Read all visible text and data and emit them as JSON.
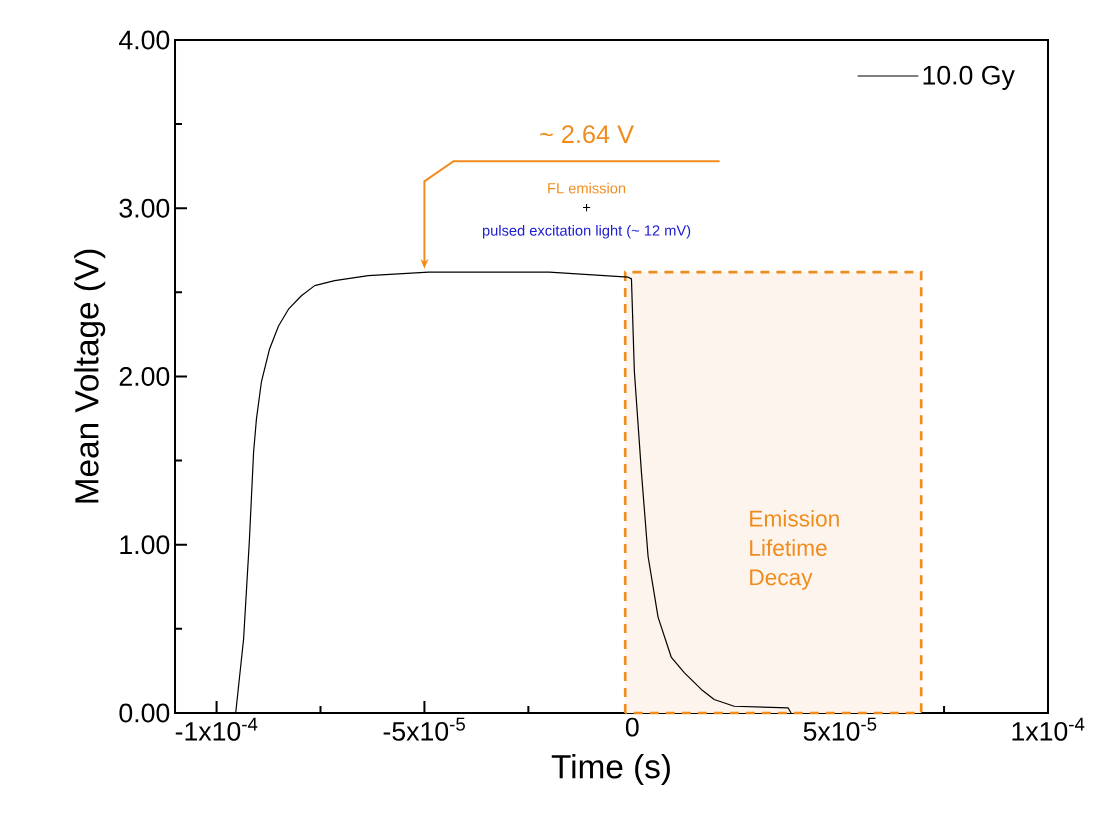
{
  "chart_data": {
    "type": "line",
    "xlabel": "Time (s)",
    "ylabel": "Mean Voltage (V)",
    "xlim": [
      -0.00011,
      0.0001
    ],
    "ylim": [
      0,
      4.0
    ],
    "xticks": [
      {
        "value": -0.0001,
        "label": "-1x10$^{-4}$"
      },
      {
        "value": -5e-05,
        "label": "-5x10$^{-5}$"
      },
      0,
      {
        "value": 5e-05,
        "label": "5x10$^{-5}$"
      },
      {
        "value": 0.0001,
        "label": "1x10$^{-4}$"
      }
    ],
    "yticks": [
      {
        "value": 0,
        "label": "0.00"
      },
      {
        "value": 1,
        "label": "1.00"
      },
      {
        "value": 2,
        "label": "2.00"
      },
      {
        "value": 3,
        "label": "3.00"
      },
      {
        "value": 4,
        "label": "4.00"
      }
    ],
    "legend": "top right",
    "series": [
      {
        "name": "10.0 Gy",
        "color": "#000000",
        "x": [
          -0.00011,
          -9.54e-05,
          -9.35e-05,
          -9.21e-05,
          -9.11e-05,
          -9.04e-05,
          -8.92e-05,
          -8.73e-05,
          -8.51e-05,
          -8.27e-05,
          -7.96e-05,
          -7.64e-05,
          -7.16e-05,
          -6.35e-05,
          -4.9e-05,
          -2e-05,
          -1e-06,
          -2e-07,
          5e-07,
          2.2e-06,
          3.8e-06,
          6.2e-06,
          9.4e-06,
          1.25e-05,
          1.66e-05,
          1.97e-05,
          2.45e-05,
          3.75e-05,
          3.82e-05
        ],
        "values": [
          0,
          0,
          0.44,
          1.03,
          1.55,
          1.75,
          1.97,
          2.16,
          2.3,
          2.4,
          2.48,
          2.54,
          2.57,
          2.6,
          2.62,
          2.62,
          2.59,
          2.58,
          2.03,
          1.43,
          0.93,
          0.57,
          0.33,
          0.24,
          0.14,
          0.08,
          0.04,
          0.03,
          0
        ]
      }
    ],
    "bands": [
      {
        "axis": "x",
        "from": -1.7e-06,
        "to": 6.95e-05,
        "label": "Emission Lifetime Decay",
        "color": "#f08c1e"
      }
    ],
    "annotations": [
      {
        "text": "~ 2.64 V",
        "x": -5e-05,
        "y": 2.64
      },
      "FL emission",
      "+",
      "pulsed excitation light (~ 12 mV)"
    ]
  }
}
